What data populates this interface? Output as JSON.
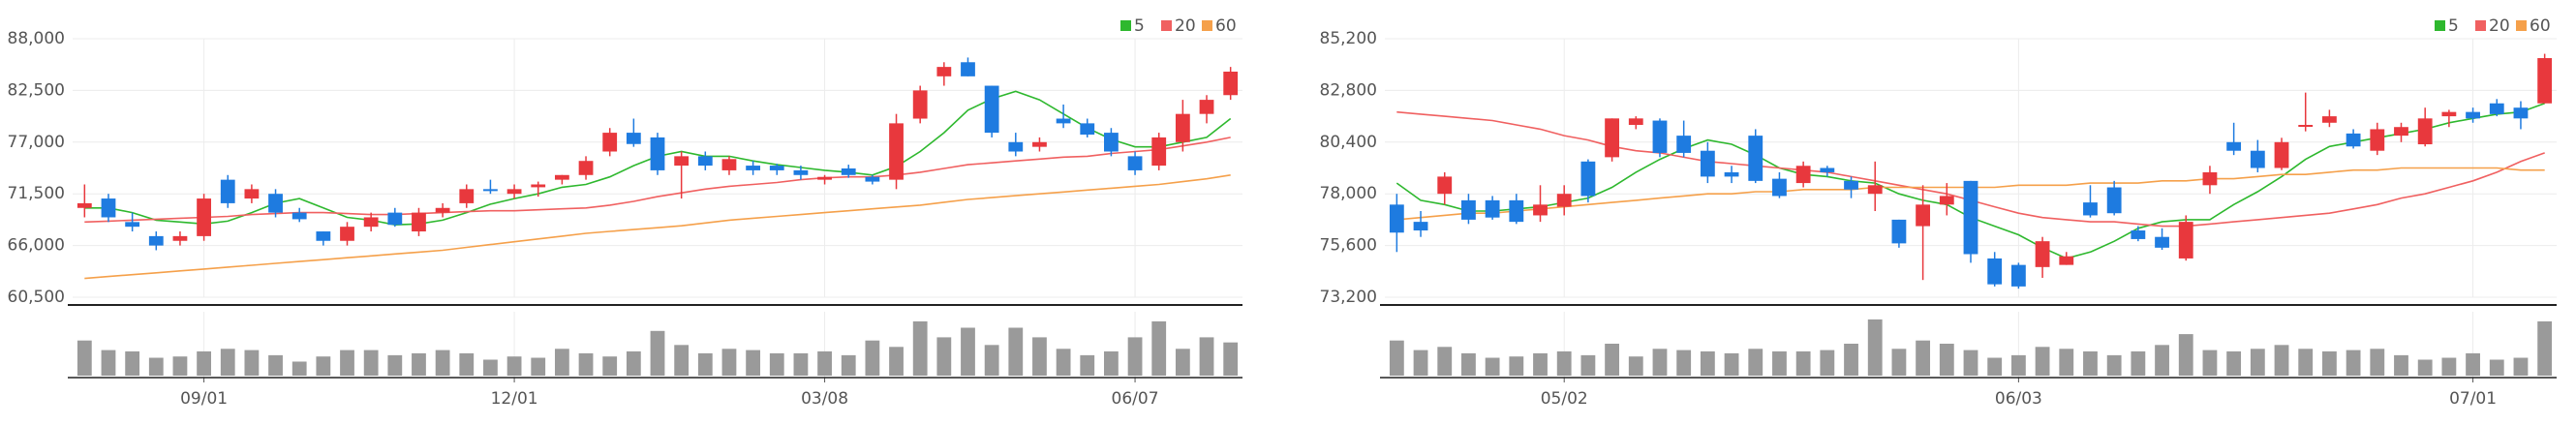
{
  "chart_data": [
    {
      "type": "candlestick",
      "categories": [
        null,
        null,
        null,
        null,
        null,
        "09/01",
        null,
        null,
        null,
        null,
        null,
        null,
        null,
        null,
        null,
        null,
        null,
        null,
        "12/01",
        null,
        null,
        null,
        null,
        null,
        null,
        null,
        null,
        null,
        null,
        null,
        null,
        "03/08",
        null,
        null,
        null,
        null,
        null,
        null,
        null,
        null,
        null,
        null,
        null,
        null,
        "06/07",
        null,
        null,
        null,
        null
      ],
      "open": [
        70000,
        71000,
        68500,
        67000,
        66500,
        67000,
        73000,
        71000,
        71500,
        69500,
        67500,
        66500,
        68000,
        69500,
        67500,
        69500,
        70500,
        72000,
        71500,
        72200,
        73000,
        73500,
        76000,
        78000,
        77500,
        74500,
        75500,
        74000,
        74500,
        74500,
        74000,
        73000,
        74200,
        73300,
        73000,
        79500,
        84000,
        85500,
        83000,
        77000,
        76500,
        79500,
        79000,
        78000,
        75500,
        74500,
        77000,
        80000,
        82000
      ],
      "high": [
        72500,
        71500,
        69500,
        67500,
        67500,
        71500,
        73500,
        72500,
        72000,
        70000,
        67500,
        68500,
        69500,
        70000,
        70000,
        70500,
        72500,
        73000,
        72500,
        72800,
        73500,
        75500,
        78500,
        79500,
        78000,
        76000,
        76000,
        75500,
        75000,
        74700,
        74500,
        73500,
        74600,
        73500,
        80000,
        83000,
        85500,
        86000,
        83000,
        78000,
        77500,
        81000,
        79500,
        78500,
        76000,
        78000,
        81500,
        82000,
        85000
      ],
      "low": [
        69000,
        68500,
        67500,
        65500,
        66000,
        66500,
        70000,
        70500,
        69000,
        68500,
        66000,
        66000,
        67500,
        68000,
        67000,
        69000,
        70000,
        71500,
        71000,
        71200,
        72500,
        73000,
        75500,
        76500,
        73500,
        71000,
        74000,
        73500,
        73500,
        73500,
        73000,
        72500,
        73200,
        72500,
        72000,
        79000,
        83000,
        84000,
        77500,
        75500,
        76000,
        78500,
        77500,
        75500,
        73500,
        74000,
        76000,
        79000,
        81500
      ],
      "close": [
        70500,
        69000,
        68000,
        66000,
        67000,
        71000,
        70500,
        72000,
        69500,
        68800,
        66500,
        68000,
        69000,
        68200,
        69500,
        70000,
        72000,
        71800,
        72000,
        72500,
        73500,
        75000,
        78000,
        76800,
        74000,
        75500,
        74500,
        75200,
        74000,
        74000,
        73500,
        73300,
        73500,
        72800,
        79000,
        82500,
        85000,
        84000,
        78000,
        76000,
        77000,
        79000,
        77800,
        76000,
        74000,
        77500,
        80000,
        81500,
        84500
      ],
      "volume": [
        55,
        40,
        38,
        28,
        30,
        38,
        42,
        40,
        32,
        22,
        30,
        40,
        40,
        32,
        35,
        40,
        35,
        25,
        30,
        28,
        42,
        35,
        30,
        38,
        70,
        48,
        35,
        42,
        40,
        35,
        35,
        38,
        32,
        55,
        45,
        85,
        60,
        75,
        48,
        75,
        60,
        42,
        32,
        38,
        60,
        85,
        42,
        60,
        52
      ],
      "series": [
        {
          "name": "5",
          "color": "#2eb82e",
          "values": [
            70000,
            70000,
            69500,
            68700,
            68500,
            68300,
            68600,
            69500,
            70500,
            71000,
            70000,
            69000,
            68700,
            68200,
            68300,
            68700,
            69500,
            70400,
            71000,
            71500,
            72200,
            72500,
            73300,
            74500,
            75500,
            76000,
            75500,
            75500,
            75000,
            74600,
            74300,
            74000,
            73800,
            73500,
            74400,
            76000,
            78000,
            80400,
            81600,
            82400,
            81500,
            80000,
            78500,
            77300,
            76500,
            76500,
            77000,
            77500,
            79500
          ]
        },
        {
          "name": "20",
          "color": "#f06060",
          "values": [
            68500,
            68600,
            68700,
            68800,
            68900,
            69000,
            69100,
            69300,
            69400,
            69500,
            69500,
            69400,
            69300,
            69300,
            69400,
            69500,
            69600,
            69700,
            69700,
            69800,
            69900,
            70000,
            70300,
            70700,
            71200,
            71600,
            72000,
            72300,
            72500,
            72700,
            73000,
            73200,
            73300,
            73300,
            73500,
            73800,
            74200,
            74600,
            74800,
            75000,
            75200,
            75400,
            75500,
            75800,
            76000,
            76200,
            76600,
            77000,
            77500
          ]
        },
        {
          "name": "60",
          "color": "#f5a04a",
          "values": [
            62500,
            62700,
            62900,
            63100,
            63300,
            63500,
            63700,
            63900,
            64100,
            64300,
            64500,
            64700,
            64900,
            65100,
            65300,
            65500,
            65800,
            66100,
            66400,
            66700,
            67000,
            67300,
            67500,
            67700,
            67900,
            68100,
            68400,
            68700,
            68900,
            69100,
            69300,
            69500,
            69700,
            69900,
            70100,
            70300,
            70600,
            70900,
            71100,
            71300,
            71500,
            71700,
            71900,
            72100,
            72300,
            72500,
            72800,
            73100,
            73500
          ]
        }
      ],
      "up_color": "#e8383d",
      "down_color": "#1e7be0",
      "volume_color": "#9a9a9a",
      "ylim": [
        60500,
        88000
      ],
      "yticks": [
        {
          "value": 60500,
          "label": "60,500"
        },
        {
          "value": 66000,
          "label": "66,000"
        },
        {
          "value": 71500,
          "label": "71,500"
        },
        {
          "value": 77000,
          "label": "77,000"
        },
        {
          "value": 82500,
          "label": "82,500"
        },
        {
          "value": 88000,
          "label": "88,000"
        }
      ],
      "volume_lim": [
        0,
        100
      ],
      "grid": true,
      "legend": "top-right"
    },
    {
      "type": "candlestick",
      "categories": [
        null,
        null,
        null,
        null,
        null,
        null,
        null,
        "05/02",
        null,
        null,
        null,
        null,
        null,
        null,
        null,
        null,
        null,
        null,
        null,
        null,
        null,
        null,
        null,
        null,
        null,
        null,
        "06/03",
        null,
        null,
        null,
        null,
        null,
        null,
        null,
        null,
        null,
        null,
        null,
        null,
        null,
        null,
        null,
        null,
        null,
        null,
        "07/01",
        null,
        null,
        null
      ],
      "open": [
        77500,
        76700,
        78000,
        77700,
        77700,
        77700,
        77000,
        77400,
        79500,
        79700,
        81200,
        81400,
        80700,
        80000,
        79000,
        80700,
        78700,
        78500,
        79200,
        78600,
        78000,
        76800,
        76500,
        77500,
        78600,
        75000,
        74700,
        74600,
        74700,
        77600,
        78300,
        76300,
        76000,
        75000,
        78400,
        80400,
        80000,
        79200,
        81200,
        81300,
        80800,
        80000,
        80700,
        80300,
        81600,
        81800,
        82200,
        82000,
        82200
      ],
      "high": [
        78000,
        77200,
        79000,
        78000,
        77900,
        78000,
        78400,
        78400,
        79600,
        81500,
        81600,
        81500,
        81400,
        80400,
        79300,
        81000,
        79000,
        79500,
        79300,
        78800,
        79500,
        76800,
        78400,
        78500,
        78600,
        75300,
        74800,
        76000,
        75300,
        78400,
        78600,
        76500,
        76400,
        77000,
        79300,
        81300,
        80500,
        80600,
        82700,
        81900,
        81000,
        81300,
        81300,
        82000,
        81900,
        82000,
        82400,
        82300,
        84500
      ],
      "low": [
        75300,
        76000,
        77500,
        76600,
        76800,
        76600,
        76700,
        77000,
        77600,
        79500,
        81000,
        79700,
        79700,
        78500,
        78500,
        78500,
        77800,
        78300,
        78800,
        77800,
        77200,
        75500,
        74000,
        77000,
        74800,
        73700,
        73600,
        74100,
        74700,
        76900,
        77000,
        75800,
        75400,
        74900,
        78000,
        79800,
        79000,
        79100,
        80900,
        81100,
        80100,
        79800,
        80400,
        80200,
        81100,
        81300,
        81600,
        81000,
        82200
      ],
      "close": [
        76200,
        76300,
        78800,
        76800,
        76900,
        76700,
        77500,
        78000,
        77900,
        81500,
        81500,
        79900,
        79900,
        78800,
        78800,
        78600,
        77900,
        79300,
        79000,
        78200,
        78400,
        75700,
        77500,
        77900,
        75200,
        73800,
        73700,
        75800,
        75100,
        77000,
        77100,
        75900,
        75500,
        76700,
        79000,
        80000,
        79200,
        80400,
        81200,
        81600,
        80200,
        81000,
        81100,
        81500,
        81800,
        81500,
        81700,
        81500,
        84300
      ],
      "volume": [
        55,
        40,
        45,
        35,
        28,
        30,
        35,
        38,
        32,
        50,
        30,
        42,
        40,
        38,
        35,
        42,
        38,
        38,
        40,
        50,
        88,
        42,
        55,
        50,
        40,
        28,
        32,
        45,
        42,
        38,
        32,
        38,
        48,
        65,
        40,
        38,
        42,
        48,
        42,
        38,
        40,
        42,
        32,
        25,
        28,
        35,
        25,
        28,
        85
      ],
      "series": [
        {
          "name": "5",
          "color": "#2eb82e",
          "values": [
            78500,
            77700,
            77500,
            77200,
            77200,
            77300,
            77400,
            77600,
            77800,
            78300,
            79000,
            79600,
            80100,
            80500,
            80300,
            79800,
            79200,
            78900,
            78800,
            78600,
            78500,
            78000,
            77700,
            77500,
            76900,
            76500,
            76100,
            75500,
            75000,
            75300,
            75800,
            76400,
            76700,
            76800,
            76800,
            77500,
            78100,
            78800,
            79600,
            80200,
            80400,
            80600,
            80800,
            81000,
            81300,
            81500,
            81700,
            81800,
            82200
          ]
        },
        {
          "name": "20",
          "color": "#f06060",
          "values": [
            81800,
            81700,
            81600,
            81500,
            81400,
            81200,
            81000,
            80700,
            80500,
            80200,
            80000,
            79900,
            79700,
            79500,
            79400,
            79300,
            79200,
            79100,
            79000,
            78800,
            78600,
            78400,
            78200,
            78000,
            77700,
            77400,
            77100,
            76900,
            76800,
            76700,
            76700,
            76600,
            76500,
            76500,
            76600,
            76700,
            76800,
            76900,
            77000,
            77100,
            77300,
            77500,
            77800,
            78000,
            78300,
            78600,
            79000,
            79500,
            79900
          ]
        },
        {
          "name": "60",
          "color": "#f5a04a",
          "values": [
            76800,
            76900,
            77000,
            77100,
            77100,
            77200,
            77300,
            77400,
            77500,
            77600,
            77700,
            77800,
            77900,
            78000,
            78000,
            78100,
            78100,
            78200,
            78200,
            78200,
            78300,
            78300,
            78300,
            78300,
            78300,
            78300,
            78400,
            78400,
            78400,
            78500,
            78500,
            78500,
            78600,
            78600,
            78700,
            78700,
            78800,
            78900,
            78900,
            79000,
            79100,
            79100,
            79200,
            79200,
            79200,
            79200,
            79200,
            79100,
            79100
          ]
        }
      ],
      "up_color": "#e8383d",
      "down_color": "#1e7be0",
      "volume_color": "#9a9a9a",
      "ylim": [
        73200,
        85200
      ],
      "yticks": [
        {
          "value": 73200,
          "label": "73,200"
        },
        {
          "value": 75600,
          "label": "75,600"
        },
        {
          "value": 78000,
          "label": "78,000"
        },
        {
          "value": 80400,
          "label": "80,400"
        },
        {
          "value": 82800,
          "label": "82,800"
        },
        {
          "value": 85200,
          "label": "85,200"
        }
      ],
      "volume_lim": [
        0,
        100
      ],
      "grid": true,
      "legend": "top-right"
    }
  ]
}
